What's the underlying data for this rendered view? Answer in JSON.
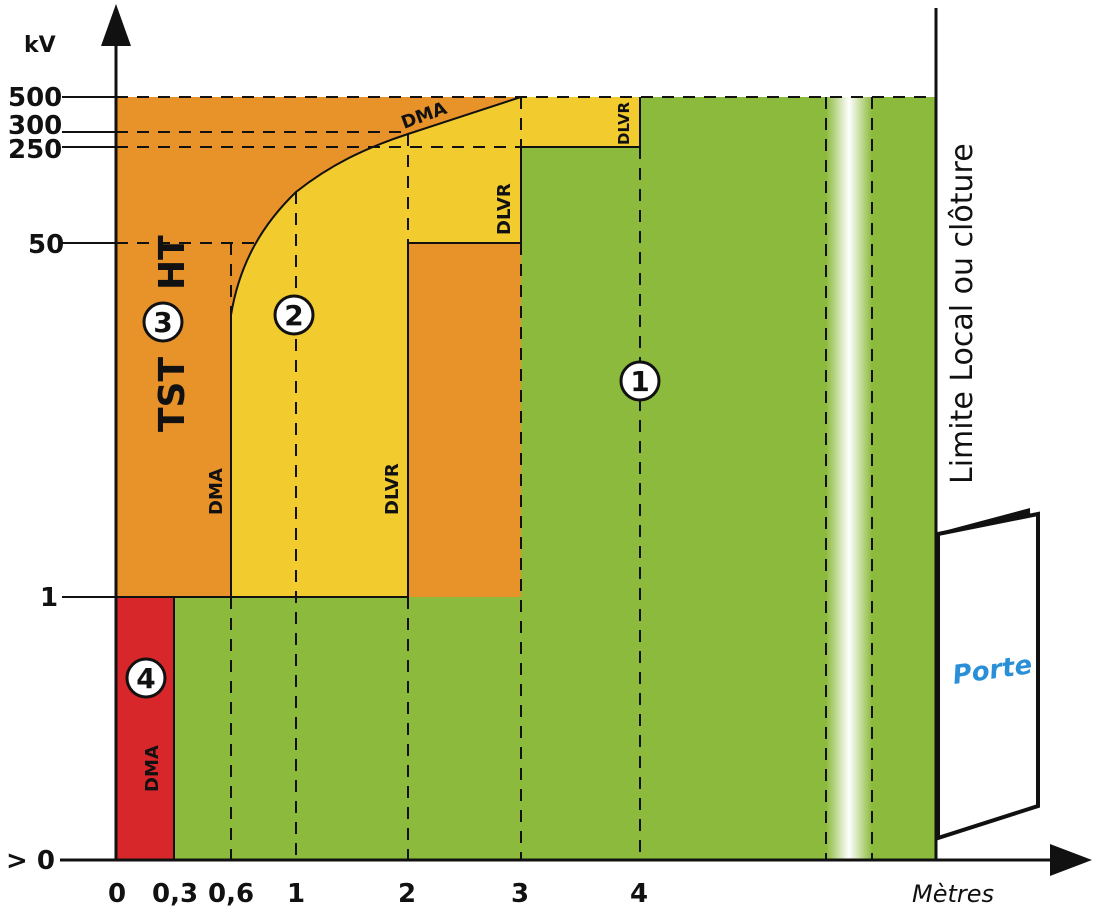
{
  "axes": {
    "y_unit": "kV",
    "x_unit": "Mètres",
    "y_ticks": [
      "500",
      "300",
      "250",
      "50",
      "1",
      "> 0"
    ],
    "x_ticks": [
      "0",
      "0,3",
      "0,6",
      "1",
      "2",
      "3",
      "4"
    ]
  },
  "zones": {
    "z1": "1",
    "z2": "2",
    "z3": "3",
    "z4": "4",
    "tst": "TST",
    "ht": "HT"
  },
  "labels": {
    "dma_curve": "DMA",
    "dma_left": "DMA",
    "dma_red": "DMA",
    "dlvr_low": "DLVR",
    "dlvr_mid": "DLVR",
    "dlvr_top": "DLVR"
  },
  "boundary": {
    "limite": "Limite Local ou clôture",
    "porte": "Porte"
  },
  "colors": {
    "orange": "#e8922a",
    "yellow": "#f2cb2e",
    "green": "#8cba3c",
    "red": "#d8272b",
    "door_text": "#2a8fd6"
  }
}
